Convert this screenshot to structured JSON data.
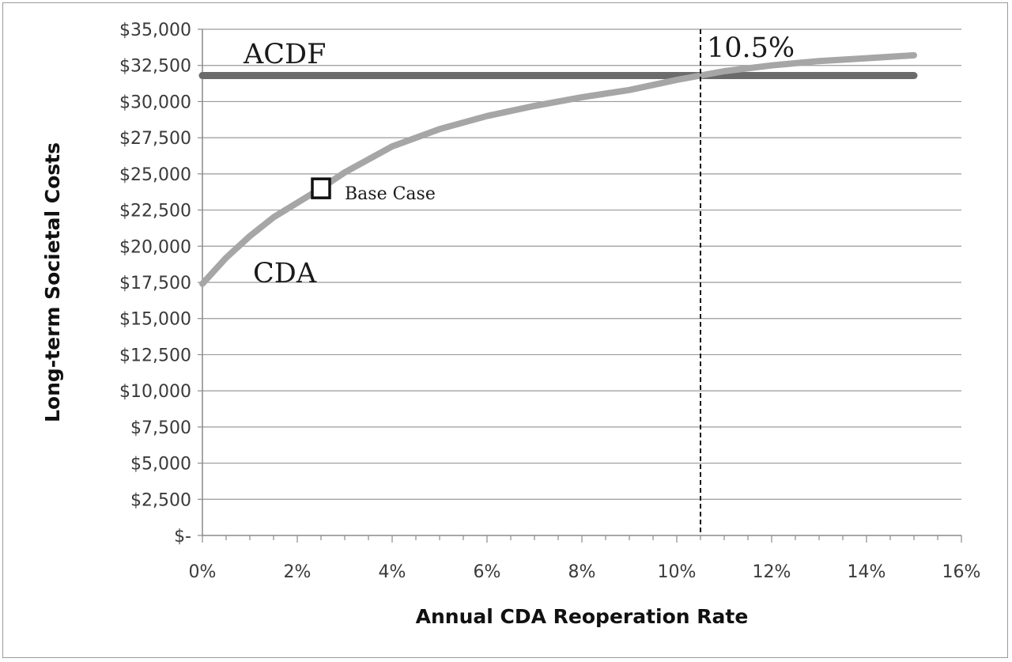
{
  "chart_data": {
    "type": "line",
    "title": "",
    "xlabel": "Annual CDA Reoperation Rate",
    "ylabel": "Long-term Societal Costs",
    "xlim": [
      0,
      16
    ],
    "ylim": [
      0,
      35000
    ],
    "x_tick_labels": [
      "0%",
      "2%",
      "4%",
      "6%",
      "8%",
      "10%",
      "12%",
      "14%",
      "16%"
    ],
    "y_tick_labels": [
      "$-",
      "$2,500",
      "$5,000",
      "$7,500",
      "$10,000",
      "$12,500",
      "$15,000",
      "$17,500",
      "$20,000",
      "$22,500",
      "$25,000",
      "$27,500",
      "$30,000",
      "$32,500",
      "$35,000"
    ],
    "grid": "horizontal",
    "series": [
      {
        "name": "ACDF",
        "color": "#6b6b6b",
        "x": [
          0,
          15
        ],
        "y": [
          31800,
          31800
        ]
      },
      {
        "name": "CDA",
        "color": "#a6a6a6",
        "x": [
          0,
          0.5,
          1,
          1.5,
          2,
          2.5,
          3,
          4,
          5,
          6,
          7,
          8,
          9,
          10,
          10.5,
          11,
          12,
          13,
          14,
          15
        ],
        "y": [
          17400,
          19200,
          20700,
          22000,
          23000,
          24000,
          25100,
          26900,
          28100,
          29000,
          29700,
          30300,
          30800,
          31500,
          31800,
          32100,
          32500,
          32800,
          33000,
          33200
        ]
      }
    ],
    "annotations": {
      "threshold": {
        "x": 10.5,
        "label": "10.5%"
      },
      "base_case": {
        "x": 2.5,
        "y": 24000,
        "label": "Base Case"
      }
    }
  }
}
